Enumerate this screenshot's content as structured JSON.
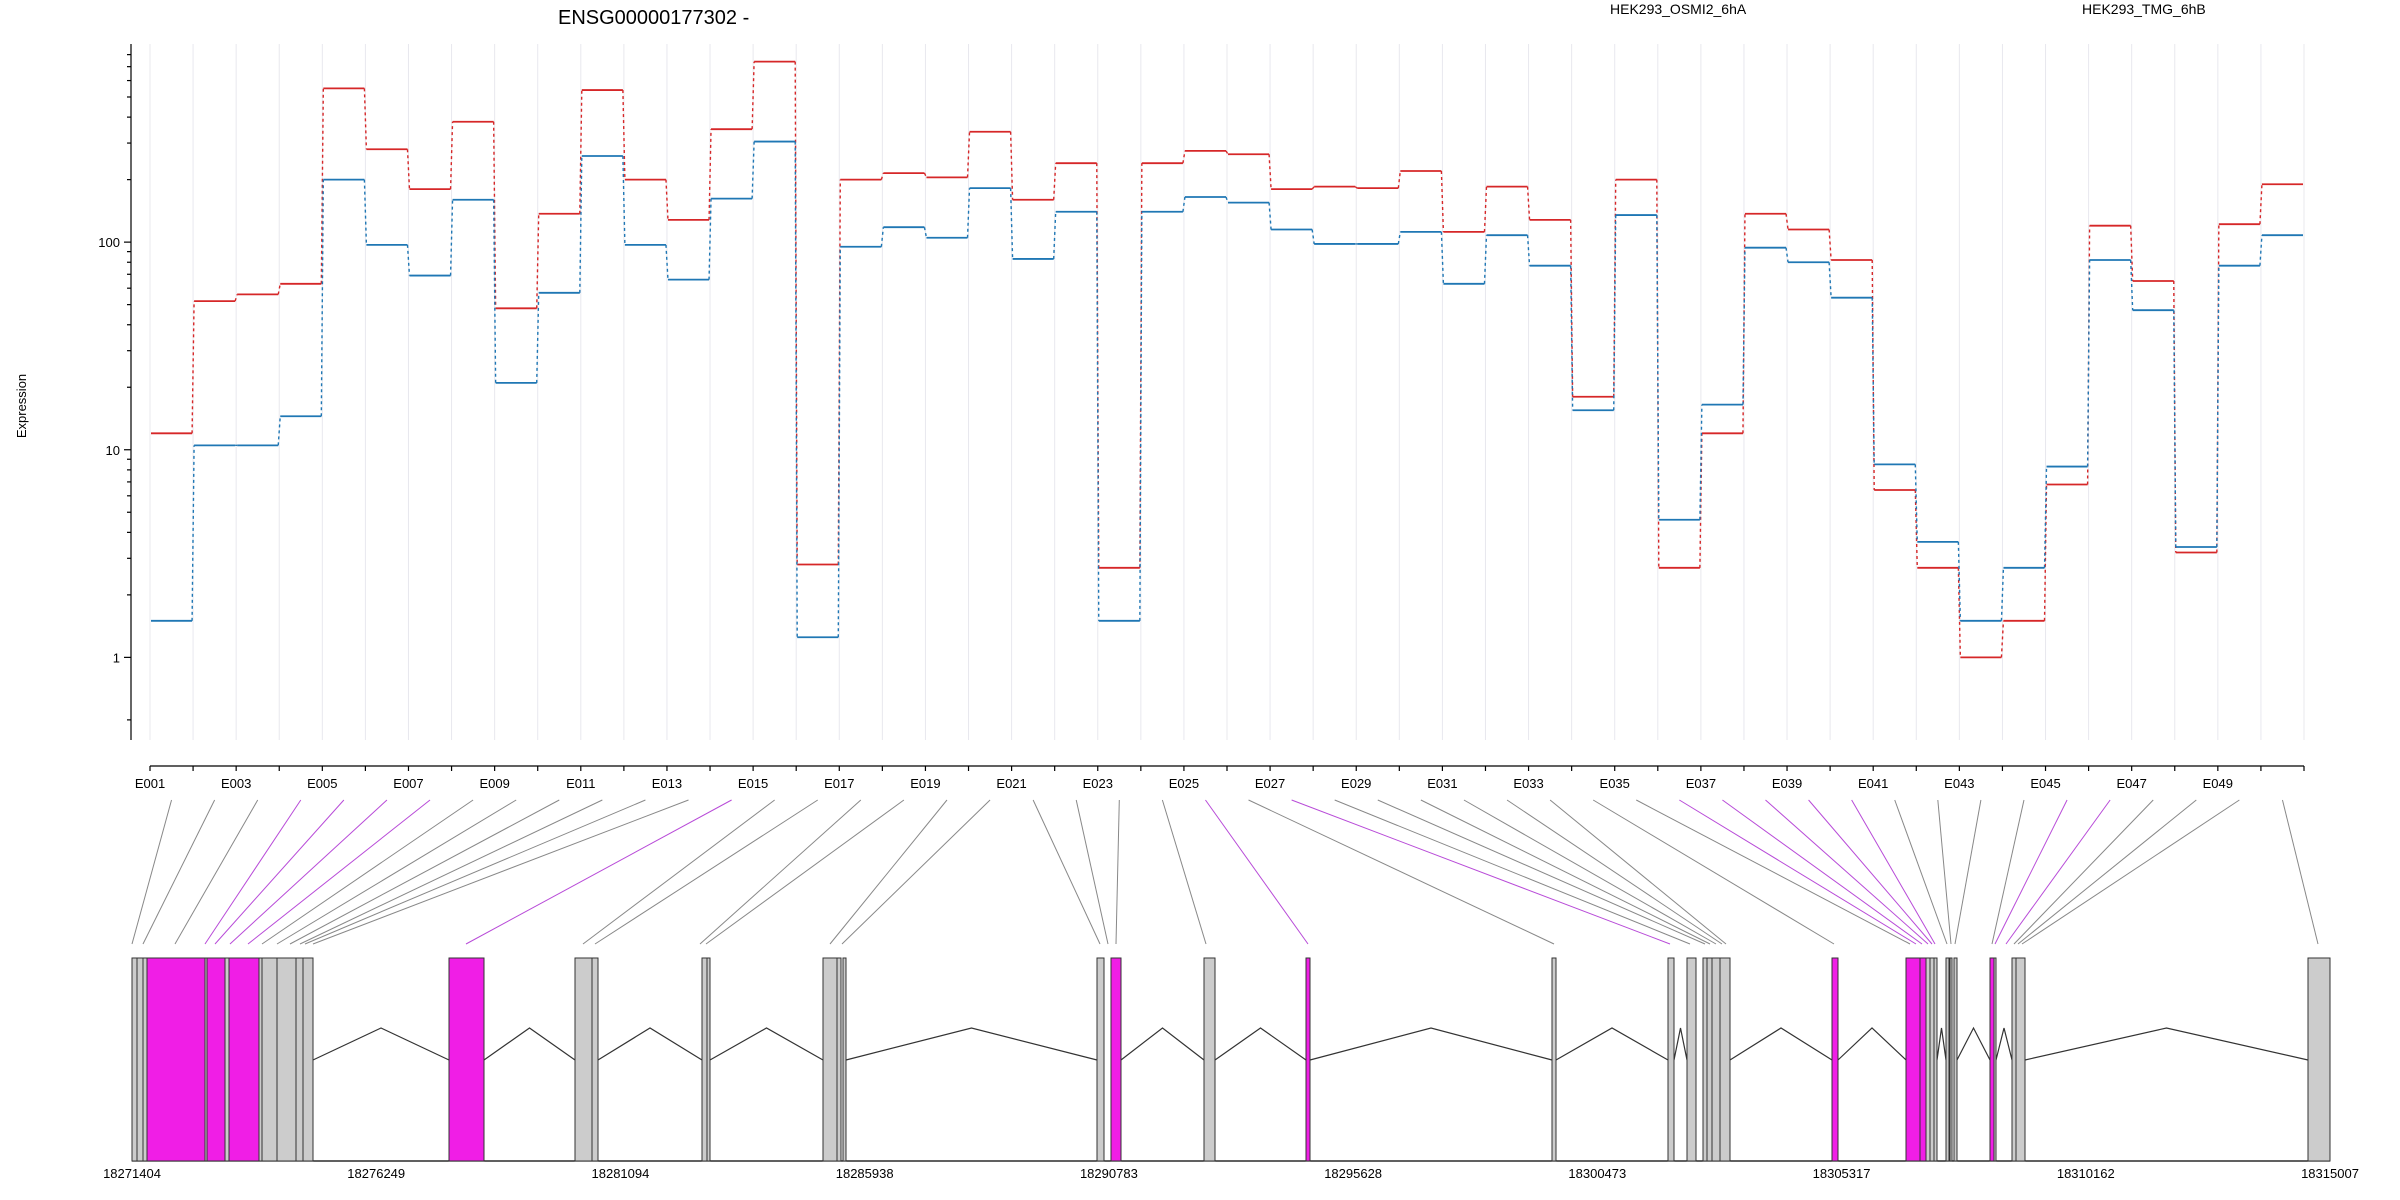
{
  "chart_data": {
    "type": "line",
    "title": "ENSG00000177302 -",
    "ylabel": "Expression",
    "yscale": "log",
    "ylim": [
      0.4,
      900
    ],
    "y_ticks": [
      {
        "value": 1,
        "label": "1"
      },
      {
        "value": 10,
        "label": "10"
      },
      {
        "value": 100,
        "label": "100"
      }
    ],
    "x": [
      "E001",
      "E002",
      "E003",
      "E004",
      "E005",
      "E006",
      "E007",
      "E008",
      "E009",
      "E010",
      "E011",
      "E012",
      "E013",
      "E014",
      "E015",
      "E016",
      "E017",
      "E018",
      "E019",
      "E020",
      "E021",
      "E022",
      "E023",
      "E024",
      "E025",
      "E026",
      "E027",
      "E028",
      "E029",
      "E030",
      "E031",
      "E032",
      "E033",
      "E034",
      "E035",
      "E036",
      "E037",
      "E038",
      "E039",
      "E040",
      "E041",
      "E042",
      "E043",
      "E044",
      "E045",
      "E046",
      "E047",
      "E048",
      "E049",
      "E050"
    ],
    "x_tick_labels": [
      "E001",
      "E003",
      "E005",
      "E007",
      "E009",
      "E011",
      "E013",
      "E015",
      "E017",
      "E019",
      "E021",
      "E023",
      "E025",
      "E027",
      "E029",
      "E031",
      "E033",
      "E035",
      "E037",
      "E039",
      "E041",
      "E043",
      "E045",
      "E047",
      "E049"
    ],
    "series": [
      {
        "name": "HEK293_OSMI2_6hA",
        "color": "#d62728",
        "values": [
          12,
          52,
          56,
          63,
          550,
          280,
          180,
          380,
          48,
          137,
          540,
          200,
          128,
          350,
          740,
          2.8,
          200,
          215,
          205,
          340,
          160,
          240,
          2.7,
          240,
          275,
          265,
          180,
          185,
          182,
          220,
          112,
          185,
          128,
          18,
          200,
          2.7,
          12,
          137,
          115,
          82,
          6.4,
          2.7,
          1.0,
          1.5,
          6.8,
          120,
          65,
          3.2,
          122,
          190
        ]
      },
      {
        "name": "HEK293_TMG_6hB",
        "color": "#1f77b4",
        "values": [
          1.5,
          10.5,
          10.5,
          14.5,
          200,
          97,
          69,
          160,
          21,
          57,
          260,
          97,
          66,
          162,
          305,
          1.25,
          95,
          118,
          105,
          182,
          83,
          140,
          1.5,
          140,
          165,
          155,
          115,
          98,
          98,
          112,
          63,
          108,
          77,
          15.5,
          135,
          4.6,
          16.5,
          94,
          80,
          54,
          8.5,
          3.6,
          1.5,
          2.7,
          8.3,
          82,
          47,
          3.4,
          77,
          108
        ]
      }
    ],
    "gene_model": {
      "coordinate_ticks": [
        "18271404",
        "18276249",
        "18281094",
        "18285938",
        "18290783",
        "18295628",
        "18300473",
        "18305317",
        "18310162",
        "18315007"
      ],
      "colors": {
        "exon": "#cccccc",
        "highlight": "#f01ee6",
        "border": "#333333",
        "link": "#888888",
        "intron": "#333333"
      }
    }
  }
}
